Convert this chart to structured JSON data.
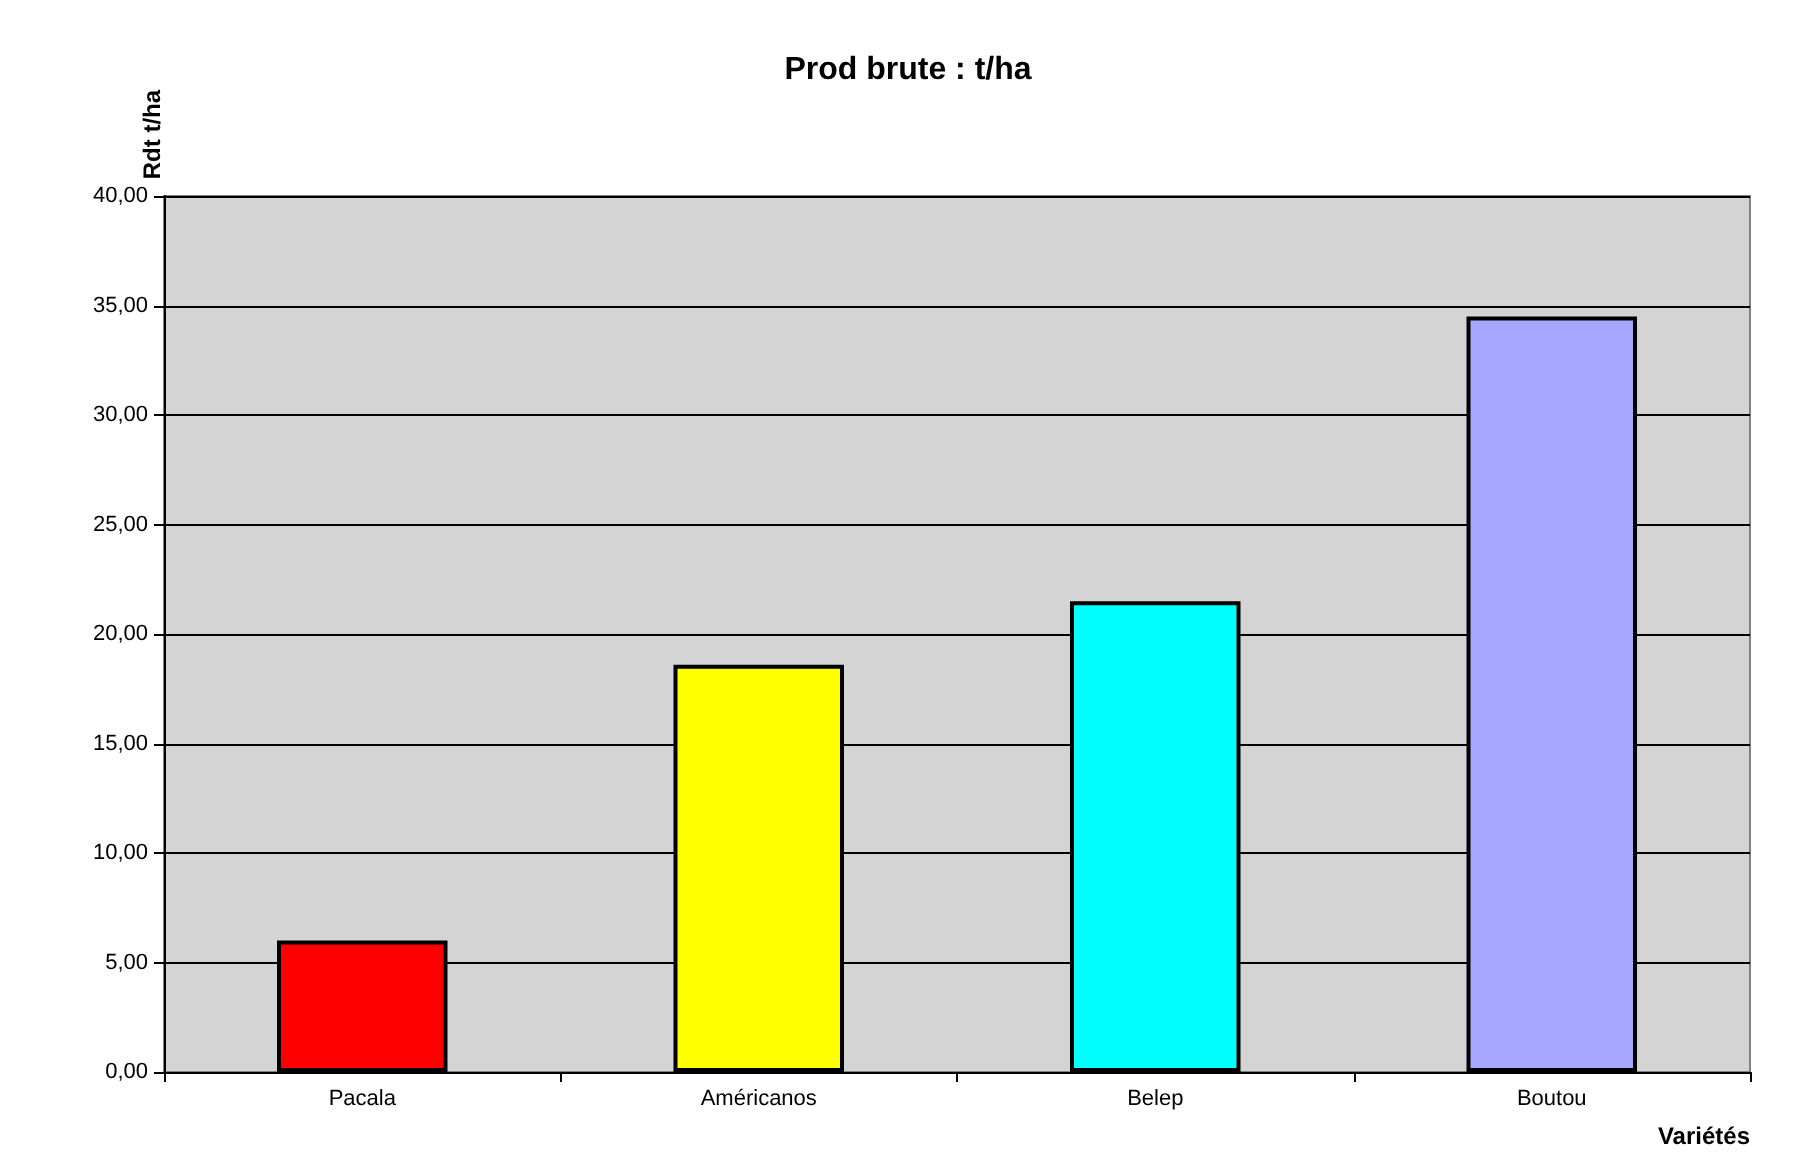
{
  "chart_data": {
    "type": "bar",
    "title": "Prod brute : t/ha",
    "xlabel": "Variétés",
    "ylabel": "Rdt t/ha",
    "categories": [
      "Pacala",
      "Américanos",
      "Belep",
      "Boutou"
    ],
    "values": [
      6.0,
      18.6,
      21.5,
      34.5
    ],
    "colors": [
      "#ff0000",
      "#ffff00",
      "#00ffff",
      "#a6a6ff"
    ],
    "ylim": [
      0,
      40
    ],
    "yticks": [
      {
        "value": 0,
        "label": "0,00"
      },
      {
        "value": 5,
        "label": "5,00"
      },
      {
        "value": 10,
        "label": "10,00"
      },
      {
        "value": 15,
        "label": "15,00"
      },
      {
        "value": 20,
        "label": "20,00"
      },
      {
        "value": 25,
        "label": "25,00"
      },
      {
        "value": 30,
        "label": "30,00"
      },
      {
        "value": 35,
        "label": "35,00"
      },
      {
        "value": 40,
        "label": "40,00"
      }
    ],
    "grid": "y"
  }
}
